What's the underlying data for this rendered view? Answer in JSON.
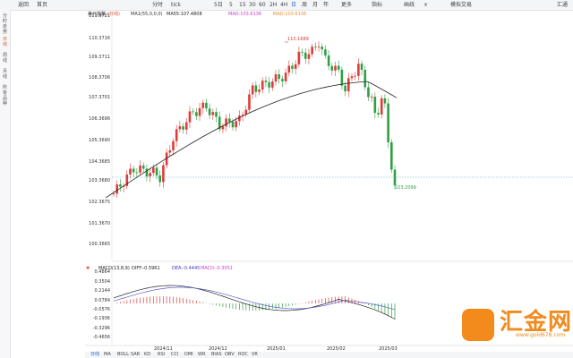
{
  "toolbar": {
    "items": [
      "返回",
      "首页",
      "分时",
      "tick",
      "5日",
      "5",
      "15",
      "30",
      "60",
      "2H",
      "4H",
      "日",
      "周",
      "月",
      "年",
      "更多",
      "指标",
      "画线",
      "×",
      "模拟交易",
      "汇通"
    ],
    "selected_index": 11
  },
  "sidebar": {
    "items": [
      "分时走势",
      "日线",
      "周线",
      "月线",
      "所有品种"
    ]
  },
  "main": {
    "legend": {
      "name": "美元指数",
      "period": "(日线)",
      "ma1": "MA1(55,0,0,0)",
      "ma55": "MA55:107.4808",
      "mad1": "MAD:103.6136",
      "mad2": "MAD:103.6136"
    },
    "y_ticks": [
      "111.3721",
      "110.3716",
      "109.3711",
      "108.3706",
      "107.3701",
      "106.3696",
      "105.3690",
      "104.3685",
      "103.3680",
      "102.3675",
      "101.3670",
      "100.3665"
    ],
    "high_label": "110.1689",
    "last_label": "103.2099"
  },
  "macd": {
    "legend": {
      "name": "MACD(13,8,9)",
      "diff": "DIFF:-0.5961",
      "dea": "DEA:-0.4445",
      "macd": "MACD:-0.3051"
    },
    "y_ticks": [
      "0.4864",
      "0.3504",
      "0.2144",
      "0.0784",
      "-0.0576",
      "-0.1936",
      "-0.3296",
      "-0.4656"
    ]
  },
  "x_ticks": [
    "2024/11",
    "2024/12",
    "2025/01",
    "2025/02",
    "2025/03"
  ],
  "bottombar": {
    "items": [
      "日线",
      "MA",
      "BOLL",
      "SAR",
      "KD",
      "RSI",
      "CCI",
      "DMI",
      "WR",
      "BIAS",
      "OBV",
      "ROC",
      "VR"
    ]
  },
  "logo": {
    "text": "汇金网",
    "url": "www.gold678.com"
  },
  "colors": {
    "up": "#e03a3a",
    "down": "#2ea043",
    "ma_line": "#222222",
    "dea_line": "#5a5ad0",
    "last_price_line": "#4da3d9",
    "brand": "#f28a1c"
  }
}
